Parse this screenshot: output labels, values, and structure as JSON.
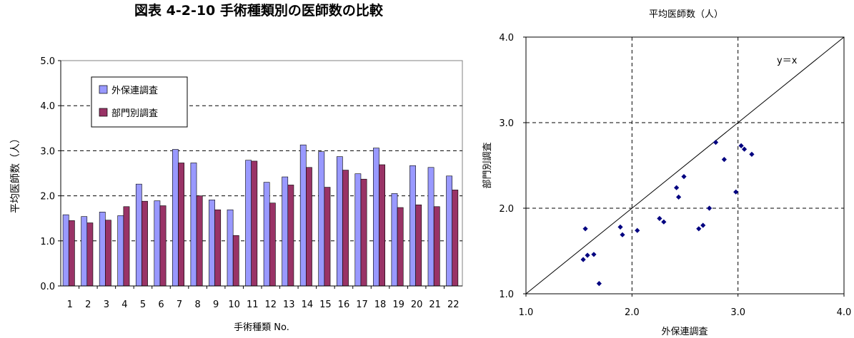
{
  "figure_title": "図表 4-2-10 手術種類別の医師数の比較",
  "chart_data": [
    {
      "type": "bar",
      "title": "",
      "xlabel": "手術種類 No.",
      "ylabel": "平均医師数（人）",
      "ylim": [
        0,
        5
      ],
      "yticks": [
        "0.0",
        "1.0",
        "2.0",
        "3.0",
        "4.0",
        "5.0"
      ],
      "grid": "dashed horizontal",
      "legend_position": "top-left",
      "categories": [
        "1",
        "2",
        "3",
        "4",
        "5",
        "6",
        "7",
        "8",
        "9",
        "10",
        "11",
        "12",
        "13",
        "14",
        "15",
        "16",
        "17",
        "18",
        "19",
        "20",
        "21",
        "22"
      ],
      "series": [
        {
          "name": "外保連調査",
          "color": "#9999ff",
          "values": [
            1.58,
            1.54,
            1.64,
            1.56,
            2.26,
            1.89,
            3.03,
            2.73,
            1.91,
            1.69,
            2.79,
            2.3,
            2.42,
            3.13,
            2.98,
            2.87,
            2.49,
            3.06,
            2.05,
            2.67,
            2.63,
            2.44
          ]
        },
        {
          "name": "部門別調査",
          "color": "#993366",
          "values": [
            1.45,
            1.4,
            1.46,
            1.76,
            1.88,
            1.78,
            2.73,
            2.0,
            1.69,
            1.12,
            2.77,
            1.84,
            2.24,
            2.63,
            2.19,
            2.57,
            2.37,
            2.69,
            1.74,
            1.8,
            1.76,
            2.13
          ]
        }
      ]
    },
    {
      "type": "scatter",
      "title": "平均医師数（人）",
      "xlabel": "外保連調査",
      "ylabel": "部門別調査",
      "xlim": [
        1.0,
        4.0
      ],
      "ylim": [
        1.0,
        4.0
      ],
      "xticks": [
        "1.0",
        "2.0",
        "3.0",
        "4.0"
      ],
      "yticks": [
        "1.0",
        "2.0",
        "3.0",
        "4.0"
      ],
      "grid": "dashed",
      "reference_line_label": "y＝x",
      "marker_color": "#000080",
      "points": [
        [
          1.58,
          1.45
        ],
        [
          1.54,
          1.4
        ],
        [
          1.64,
          1.46
        ],
        [
          1.56,
          1.76
        ],
        [
          2.26,
          1.88
        ],
        [
          1.89,
          1.78
        ],
        [
          3.03,
          2.73
        ],
        [
          2.73,
          2.0
        ],
        [
          1.91,
          1.69
        ],
        [
          1.69,
          1.12
        ],
        [
          2.79,
          2.77
        ],
        [
          2.3,
          1.84
        ],
        [
          2.42,
          2.24
        ],
        [
          3.13,
          2.63
        ],
        [
          2.98,
          2.19
        ],
        [
          2.87,
          2.57
        ],
        [
          2.49,
          2.37
        ],
        [
          3.06,
          2.69
        ],
        [
          2.05,
          1.74
        ],
        [
          2.67,
          1.8
        ],
        [
          2.63,
          1.76
        ],
        [
          2.44,
          2.13
        ]
      ]
    }
  ]
}
